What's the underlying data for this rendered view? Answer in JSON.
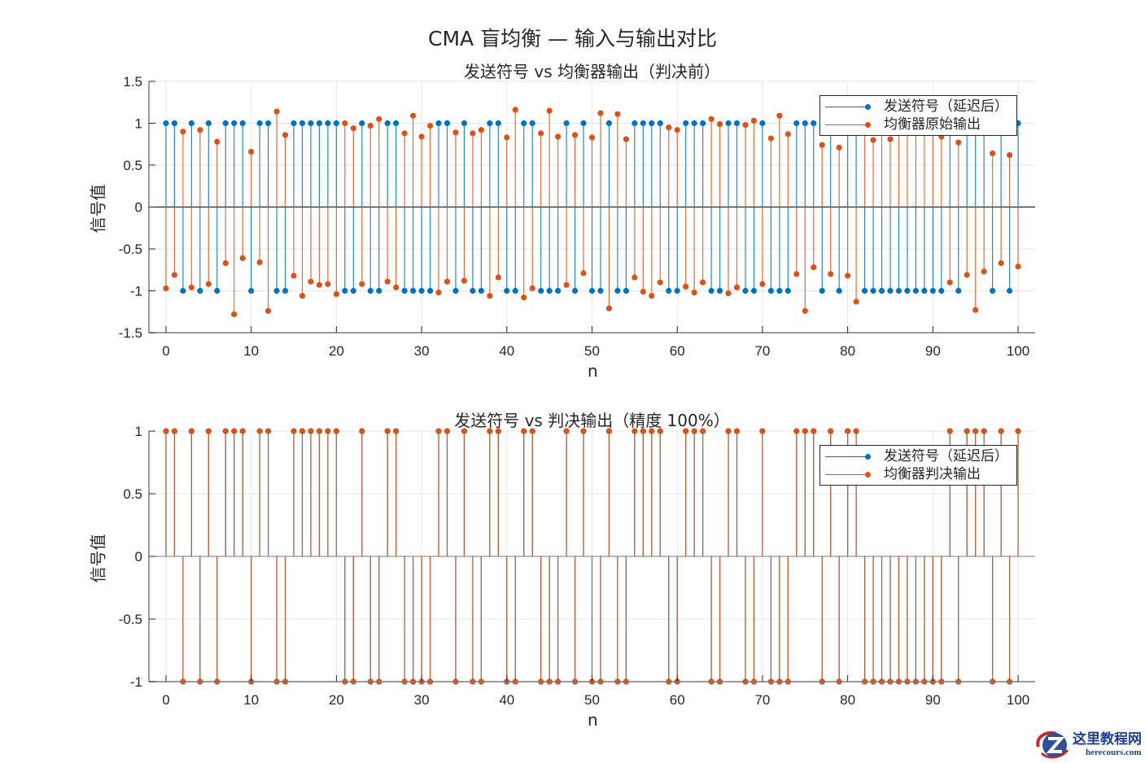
{
  "figure": {
    "suptitle": "CMA 盲均衡 — 输入与输出对比",
    "colors": {
      "sent": "#0072BD",
      "equalized": "#D95319",
      "grid": "#e6e6e6",
      "axis": "#262626"
    }
  },
  "top_plot": {
    "title": "发送符号 vs 均衡器输出（判决前）",
    "xlabel": "n",
    "ylabel": "信号值",
    "legend": [
      "发送符号（延迟后）",
      "均衡器原始输出"
    ],
    "xticks": [
      "0",
      "10",
      "20",
      "30",
      "40",
      "50",
      "60",
      "70",
      "80",
      "90",
      "100"
    ],
    "yticks": [
      "1.5",
      "1",
      "0.5",
      "0",
      "-0.5",
      "-1",
      "-1.5"
    ]
  },
  "bottom_plot": {
    "title": "发送符号 vs 判决输出（精度 100%）",
    "xlabel": "n",
    "ylabel": "信号值",
    "legend": [
      "发送符号（延迟后）",
      "均衡器判决输出"
    ],
    "xticks": [
      "0",
      "10",
      "20",
      "30",
      "40",
      "50",
      "60",
      "70",
      "80",
      "90",
      "100"
    ],
    "yticks": [
      "1",
      "0.5",
      "0",
      "-0.5",
      "-1"
    ]
  },
  "watermark": {
    "title": "这里教程网",
    "url": "herecours.com"
  },
  "chart_data": [
    {
      "type": "stem",
      "title": "发送符号 vs 均衡器输出（判决前）",
      "xlabel": "n",
      "ylabel": "信号值",
      "xlim": [
        -2,
        102
      ],
      "ylim": [
        -1.5,
        1.5
      ],
      "grid": true,
      "legend_position": "northeast",
      "x_start": 0,
      "series": [
        {
          "name": "发送符号（延迟后）",
          "color": "#0072BD",
          "values": [
            1,
            1,
            -1,
            1,
            -1,
            1,
            -1,
            1,
            1,
            1,
            -1,
            1,
            1,
            -1,
            -1,
            1,
            1,
            1,
            1,
            1,
            1,
            -1,
            -1,
            1,
            -1,
            -1,
            1,
            1,
            -1,
            -1,
            -1,
            -1,
            1,
            1,
            -1,
            1,
            -1,
            -1,
            1,
            1,
            -1,
            -1,
            1,
            1,
            -1,
            -1,
            -1,
            1,
            -1,
            1,
            -1,
            -1,
            1,
            -1,
            -1,
            1,
            1,
            1,
            1,
            -1,
            -1,
            1,
            1,
            1,
            -1,
            -1,
            1,
            1,
            -1,
            -1,
            1,
            -1,
            -1,
            -1,
            1,
            1,
            1,
            -1,
            1,
            -1,
            1,
            1,
            -1,
            -1,
            -1,
            -1,
            -1,
            -1,
            -1,
            -1,
            -1,
            -1,
            1,
            -1,
            1,
            1,
            1,
            -1,
            1,
            -1,
            1
          ]
        },
        {
          "name": "均衡器原始输出",
          "color": "#D95319",
          "values": [
            -0.97,
            -0.81,
            0.9,
            -0.96,
            0.92,
            -0.92,
            0.78,
            -0.67,
            -1.28,
            -0.61,
            0.66,
            -0.66,
            -1.24,
            1.14,
            0.86,
            -0.82,
            -1.06,
            -0.89,
            -0.93,
            -0.92,
            -1.04,
            1.0,
            0.94,
            -0.92,
            0.97,
            1.05,
            -0.89,
            -0.96,
            0.88,
            1.09,
            0.84,
            0.97,
            -1.02,
            -0.89,
            0.89,
            -0.88,
            0.88,
            0.92,
            -1.06,
            -0.84,
            0.83,
            1.16,
            -1.08,
            -0.97,
            0.88,
            1.15,
            0.84,
            -0.93,
            0.86,
            -0.79,
            0.83,
            1.12,
            -1.21,
            1.11,
            0.81,
            -0.84,
            -1.01,
            -1.06,
            -0.9,
            0.95,
            0.92,
            -0.95,
            -1.02,
            -0.9,
            1.05,
            0.99,
            -1.03,
            -0.96,
            0.98,
            1.03,
            -0.92,
            0.82,
            1.09,
            0.87,
            -0.8,
            -1.24,
            -0.72,
            0.74,
            -0.8,
            0.71,
            -0.82,
            -1.13,
            0.95,
            0.8,
            0.97,
            0.81,
            0.96,
            0.93,
            0.98,
            0.94,
            0.96,
            0.84,
            -0.9,
            0.77,
            -0.81,
            -1.23,
            -0.77,
            0.64,
            -0.67,
            0.62,
            -0.71
          ]
        }
      ]
    },
    {
      "type": "stem",
      "title": "发送符号 vs 判决输出（精度 100%）",
      "xlabel": "n",
      "ylabel": "信号值",
      "xlim": [
        -2,
        102
      ],
      "ylim": [
        -1,
        1
      ],
      "grid": true,
      "legend_position": "northeast",
      "x_start": 0,
      "series": [
        {
          "name": "发送符号（延迟后）",
          "color": "#0072BD",
          "values": [
            1,
            1,
            -1,
            1,
            -1,
            1,
            -1,
            1,
            1,
            1,
            -1,
            1,
            1,
            -1,
            -1,
            1,
            1,
            1,
            1,
            1,
            1,
            -1,
            -1,
            1,
            -1,
            -1,
            1,
            1,
            -1,
            -1,
            -1,
            -1,
            1,
            1,
            -1,
            1,
            -1,
            -1,
            1,
            1,
            -1,
            -1,
            1,
            1,
            -1,
            -1,
            -1,
            1,
            -1,
            1,
            -1,
            -1,
            1,
            -1,
            -1,
            1,
            1,
            1,
            1,
            -1,
            -1,
            1,
            1,
            1,
            -1,
            -1,
            1,
            1,
            -1,
            -1,
            1,
            -1,
            -1,
            -1,
            1,
            1,
            1,
            -1,
            1,
            -1,
            1,
            1,
            -1,
            -1,
            -1,
            -1,
            -1,
            -1,
            -1,
            -1,
            -1,
            -1,
            1,
            -1,
            1,
            1,
            1,
            -1,
            1,
            -1,
            1
          ]
        },
        {
          "name": "均衡器判决输出",
          "color": "#D95319",
          "values": [
            1,
            1,
            -1,
            1,
            -1,
            1,
            -1,
            1,
            1,
            1,
            -1,
            1,
            1,
            -1,
            -1,
            1,
            1,
            1,
            1,
            1,
            1,
            -1,
            -1,
            1,
            -1,
            -1,
            1,
            1,
            -1,
            -1,
            -1,
            -1,
            1,
            1,
            -1,
            1,
            -1,
            -1,
            1,
            1,
            -1,
            -1,
            1,
            1,
            -1,
            -1,
            -1,
            1,
            -1,
            1,
            -1,
            -1,
            1,
            -1,
            -1,
            1,
            1,
            1,
            1,
            -1,
            -1,
            1,
            1,
            1,
            -1,
            -1,
            1,
            1,
            -1,
            -1,
            1,
            -1,
            -1,
            -1,
            1,
            1,
            1,
            -1,
            1,
            -1,
            1,
            1,
            -1,
            -1,
            -1,
            -1,
            -1,
            -1,
            -1,
            -1,
            -1,
            -1,
            1,
            -1,
            1,
            1,
            1,
            -1,
            1,
            -1,
            1
          ]
        }
      ]
    }
  ]
}
